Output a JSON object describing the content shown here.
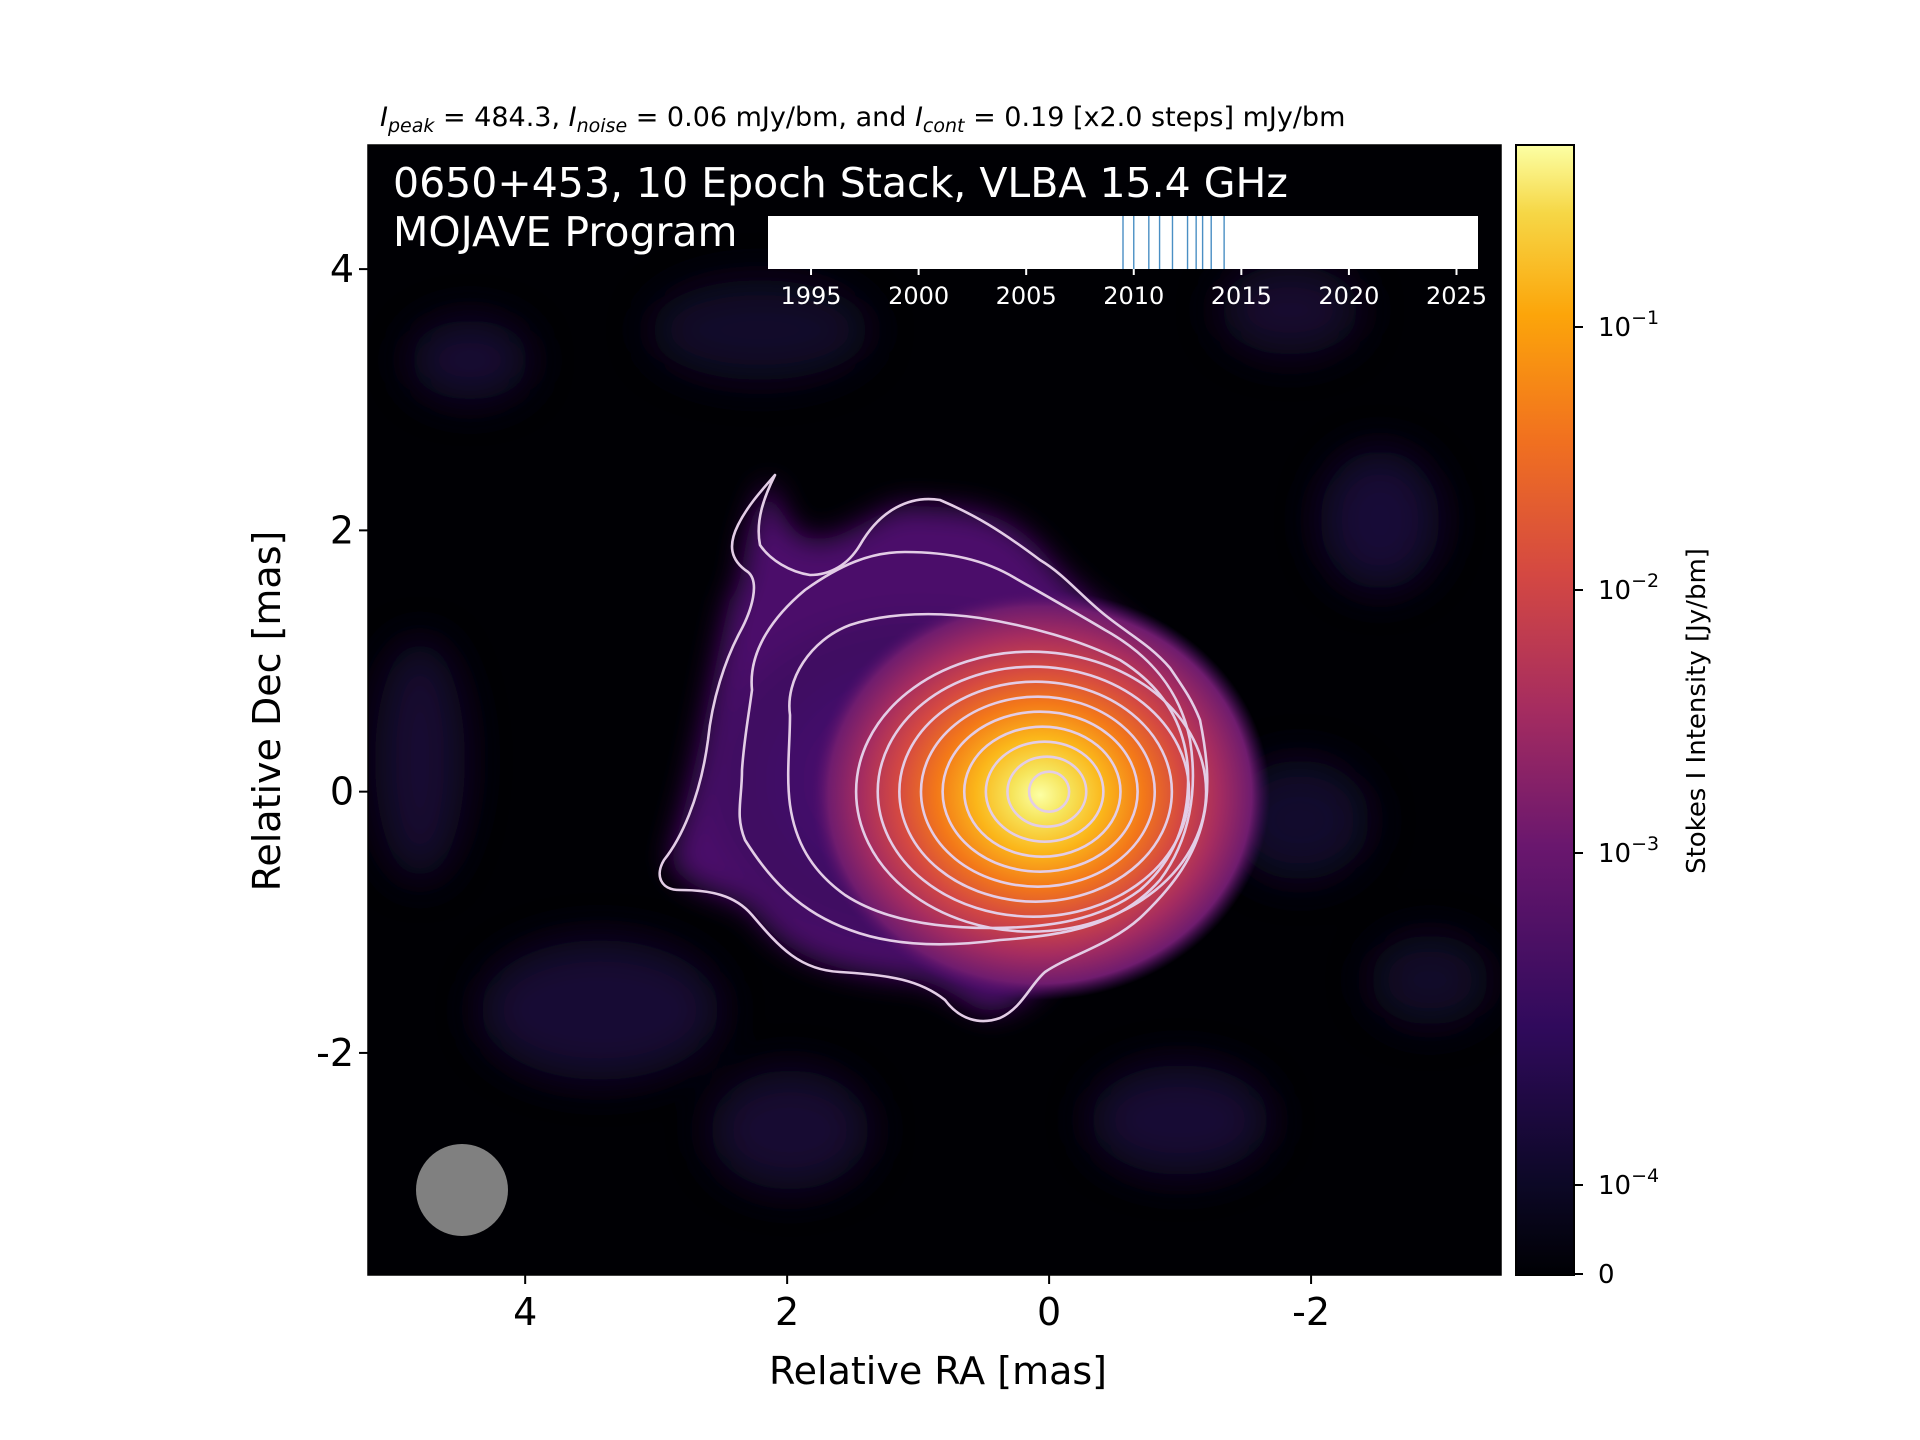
{
  "figure": {
    "header": {
      "peak_sym": "I",
      "peak_sub": "peak",
      "peak_text": " = 484.3, ",
      "noise_sym": "I",
      "noise_sub": "noise",
      "noise_text": " = 0.06 mJy/bm, and ",
      "cont_sym": "I",
      "cont_sub": "cont",
      "cont_text": " = 0.19 [x2.0 steps] mJy/bm"
    },
    "source_line": "0650+453, 10 Epoch Stack, VLBA 15.4 GHz",
    "program_line": "MOJAVE Program",
    "xlabel": "Relative RA [mas]",
    "ylabel": "Relative Dec [mas]",
    "colorbar_label": "Stokes I Intensity [Jy/bm]",
    "colorbar_ticks": [
      {
        "base": "10",
        "exp": "−1"
      },
      {
        "base": "10",
        "exp": "−2"
      },
      {
        "base": "10",
        "exp": "−3"
      },
      {
        "base": "10",
        "exp": "−4"
      },
      {
        "base": "0",
        "exp": ""
      }
    ]
  },
  "chart_data": {
    "type": "heatmap",
    "colormap": "inferno",
    "color_scale": "log",
    "colorbar_range_jy_per_bm": [
      0,
      0.484
    ],
    "xlim": [
      5.2,
      -3.45
    ],
    "ylim": [
      -3.7,
      4.95
    ],
    "x_ticks": [
      "4",
      "2",
      "0",
      "-2"
    ],
    "x_tick_values": [
      4,
      2,
      0,
      -2
    ],
    "y_ticks": [
      "4",
      "2",
      "0",
      "-2"
    ],
    "y_tick_values": [
      4,
      2,
      0,
      -2
    ],
    "peak_position_mas": [
      0,
      0
    ],
    "beam_center_mas": [
      4.45,
      -3.0
    ],
    "beam_diameter_mas": 0.7,
    "contour_levels_mjy_per_bm": [
      0.19,
      0.38,
      0.76,
      1.52,
      3.04,
      6.08,
      12.2,
      24.3,
      48.6,
      97.3,
      194.6,
      389.1
    ],
    "contour_color": "#e3cde6",
    "beam_color": "#808080",
    "epoch_timeline": {
      "range": [
        1993,
        2026
      ],
      "ticks": [
        "1995",
        "2000",
        "2005",
        "2010",
        "2015",
        "2020",
        "2025"
      ],
      "tick_values": [
        1995,
        2000,
        2005,
        2010,
        2015,
        2020,
        2025
      ],
      "epochs": [
        2009.5,
        2010.0,
        2010.7,
        2011.2,
        2011.8,
        2012.5,
        2012.9,
        2013.2,
        2013.6,
        2014.2
      ],
      "line_color": "#4a8fc4"
    }
  }
}
